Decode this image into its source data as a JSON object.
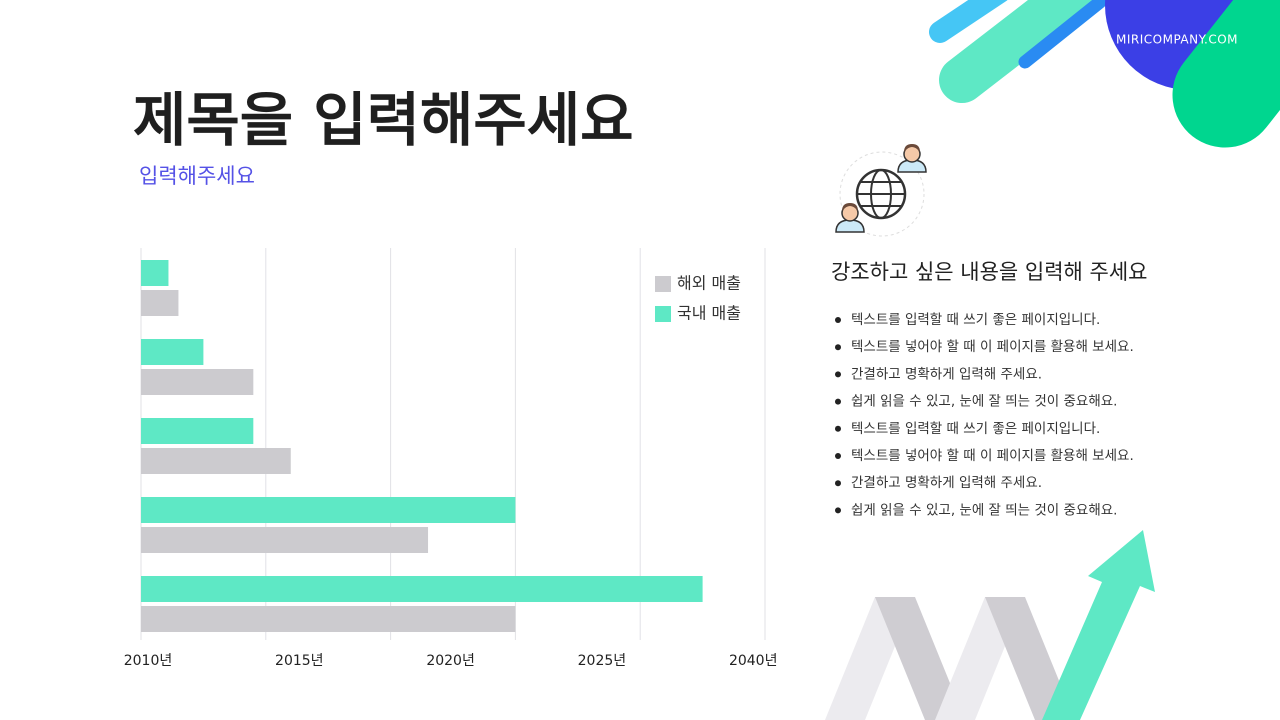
{
  "header": {
    "title": "제목을 입력해주세요",
    "subtitle": "입력해주세요",
    "brand": "MIRICOMPANY.COM"
  },
  "chart_data": {
    "type": "hbar",
    "categories": [
      null,
      null,
      null,
      null,
      null
    ],
    "series": [
      {
        "name": "국내 매출",
        "color": "#5ee8c5",
        "values": [
          0.22,
          0.5,
          0.9,
          3.0,
          4.5
        ]
      },
      {
        "name": "해외 매출",
        "color": "#cccbcf",
        "values": [
          0.3,
          0.9,
          1.2,
          2.3,
          3.0
        ]
      }
    ],
    "legend_order": [
      1,
      0
    ],
    "xlim": [
      0,
      5
    ],
    "xticks": [
      0,
      1,
      2,
      3,
      4,
      5
    ],
    "grid": true,
    "x_labels": [
      "2010년",
      "2015년",
      "2020년",
      "2025년",
      "2040년"
    ]
  },
  "panel": {
    "heading": "강조하고 싶은 내용을 입력해 주세요",
    "bullets": [
      "텍스트를 입력할 때 쓰기 좋은 페이지입니다.",
      "텍스트를 넣어야 할 때 이 페이지를 활용해 보세요.",
      "간결하고 명확하게 입력해 주세요.",
      "쉽게 읽을 수 있고, 눈에 잘 띄는 것이 중요해요.",
      "텍스트를 입력할 때 쓰기 좋은 페이지입니다.",
      "텍스트를 넣어야 할 때 이 페이지를 활용해 보세요.",
      "간결하고 명확하게 입력해 주세요.",
      "쉽게 읽을 수 있고, 눈에 잘 띄는 것이 중요해요."
    ]
  }
}
